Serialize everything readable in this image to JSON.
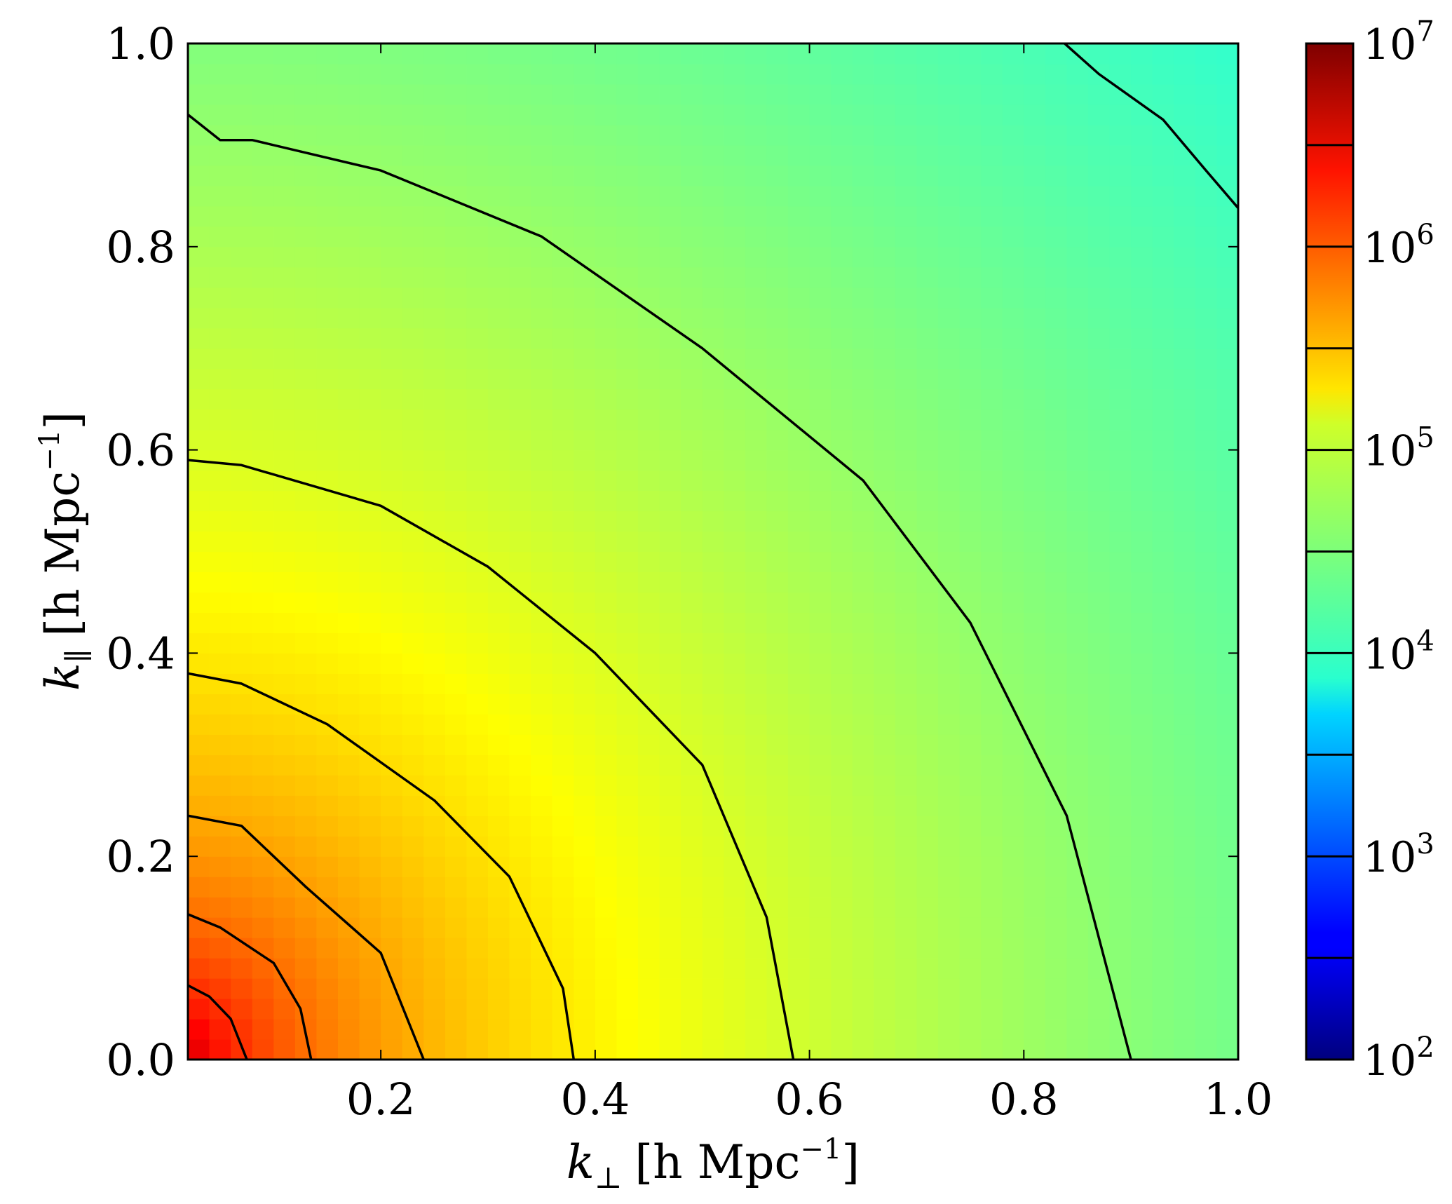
{
  "chart_data": {
    "type": "heatmap",
    "x": {
      "label": "k⊥ [h Mpc⁻¹]",
      "label_main": "k",
      "label_sub": "⊥",
      "label_rest": "[h Mpc",
      "label_exp": "−1",
      "label_close": "]",
      "range": [
        0.02,
        1.0
      ],
      "ticks": [
        0.2,
        0.4,
        0.6,
        0.8,
        1.0
      ],
      "tick_labels": [
        "0.2",
        "0.4",
        "0.6",
        "0.8",
        "1.0"
      ]
    },
    "y": {
      "label": "k∥ [h Mpc⁻¹]",
      "label_main": "k",
      "label_sub": "∥",
      "label_rest": "[h Mpc",
      "label_exp": "−1",
      "label_close": "]",
      "range": [
        0.0,
        1.0
      ],
      "ticks": [
        0.0,
        0.2,
        0.4,
        0.6,
        0.8,
        1.0
      ],
      "tick_labels": [
        "0.0",
        "0.2",
        "0.4",
        "0.6",
        "0.8",
        "1.0"
      ]
    },
    "colorbar": {
      "scale": "log",
      "range": [
        100,
        10000000
      ],
      "colormap": "jet",
      "ticks": [
        {
          "base": "10",
          "exp": "2",
          "value": 100
        },
        {
          "base": "10",
          "exp": "3",
          "value": 1000
        },
        {
          "base": "10",
          "exp": "4",
          "value": 10000
        },
        {
          "base": "10",
          "exp": "5",
          "value": 100000
        },
        {
          "base": "10",
          "exp": "6",
          "value": 1000000
        },
        {
          "base": "10",
          "exp": "7",
          "value": 10000000
        }
      ],
      "contour_levels": [
        316.2,
        1000,
        3162,
        10000,
        31623,
        100000,
        316228,
        1000000,
        3162278
      ]
    },
    "field": {
      "description_of_values": "log10 amplitude falling radially from the origin",
      "grid_step": 0.02
    },
    "contours": [
      {
        "level": 1000000,
        "points": [
          [
            0.02,
            0.073
          ],
          [
            0.04,
            0.062
          ],
          [
            0.06,
            0.04
          ],
          [
            0.075,
            0.0
          ]
        ]
      },
      {
        "level": 316228,
        "points": [
          [
            0.02,
            0.143
          ],
          [
            0.05,
            0.13
          ],
          [
            0.1,
            0.095
          ],
          [
            0.125,
            0.05
          ],
          [
            0.135,
            0.0
          ]
        ]
      },
      {
        "level": 100000,
        "points": [
          [
            0.02,
            0.24
          ],
          [
            0.07,
            0.23
          ],
          [
            0.13,
            0.17
          ],
          [
            0.2,
            0.105
          ],
          [
            0.24,
            0.0
          ]
        ]
      },
      {
        "level": 31623,
        "points": [
          [
            0.02,
            0.38
          ],
          [
            0.07,
            0.37
          ],
          [
            0.15,
            0.33
          ],
          [
            0.25,
            0.255
          ],
          [
            0.32,
            0.18
          ],
          [
            0.37,
            0.07
          ],
          [
            0.38,
            0.0
          ]
        ]
      },
      {
        "level": 10000,
        "points": [
          [
            0.02,
            0.59
          ],
          [
            0.07,
            0.585
          ],
          [
            0.2,
            0.545
          ],
          [
            0.3,
            0.485
          ],
          [
            0.4,
            0.4
          ],
          [
            0.5,
            0.29
          ],
          [
            0.56,
            0.14
          ],
          [
            0.585,
            0.0
          ]
        ]
      },
      {
        "level": 3162,
        "points": [
          [
            0.02,
            0.93
          ],
          [
            0.05,
            0.905
          ],
          [
            0.08,
            0.905
          ],
          [
            0.2,
            0.875
          ],
          [
            0.35,
            0.81
          ],
          [
            0.5,
            0.7
          ],
          [
            0.65,
            0.57
          ],
          [
            0.75,
            0.43
          ],
          [
            0.84,
            0.24
          ],
          [
            0.9,
            0.0
          ]
        ]
      },
      {
        "level": 1000,
        "points": [
          [
            0.838,
            1.0
          ],
          [
            0.87,
            0.97
          ],
          [
            0.93,
            0.925
          ],
          [
            0.97,
            0.875
          ],
          [
            1.0,
            0.838
          ]
        ]
      }
    ]
  }
}
